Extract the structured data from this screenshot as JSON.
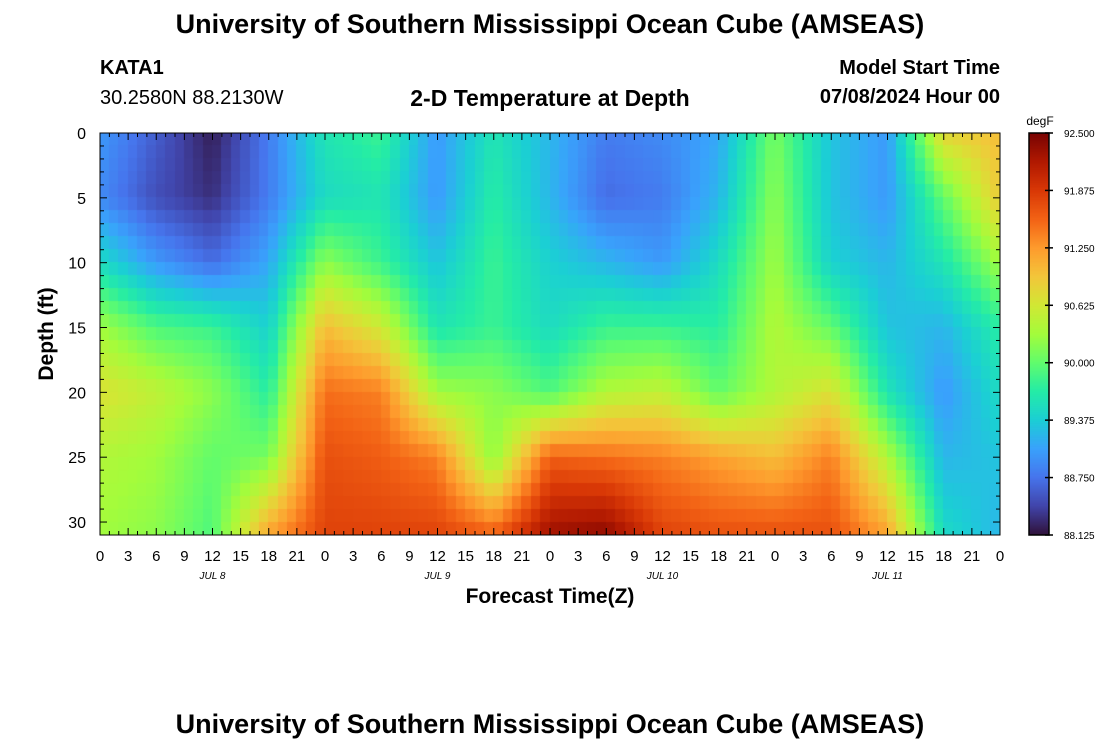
{
  "header": {
    "title": "University of Southern Mississippi Ocean Cube (AMSEAS)",
    "station": "KATA1",
    "coords": "30.2580N  88.2130W",
    "subtitle": "2-D Temperature at Depth",
    "start_label": "Model Start Time",
    "start_value": "07/08/2024 Hour 00",
    "footer_title": "University of Southern Mississippi Ocean Cube (AMSEAS)"
  },
  "colors": {
    "scale": [
      "#30123b",
      "#4145ab",
      "#4675ed",
      "#39a2fc",
      "#1bcfd4",
      "#24eca6",
      "#61fc6c",
      "#a4fc3b",
      "#d1e834",
      "#f3c63a",
      "#fe9b2d",
      "#f36315",
      "#d93806",
      "#b11901",
      "#7a0402"
    ]
  },
  "chart_data": {
    "type": "heatmap",
    "title": "2-D Temperature at Depth",
    "xlabel": "Forecast Time(Z)",
    "ylabel": "Depth (ft)",
    "units": "degF",
    "xlim": [
      0,
      96
    ],
    "ylim": [
      0,
      31
    ],
    "x_tick_labels": [
      "0",
      "3",
      "6",
      "9",
      "12",
      "15",
      "18",
      "21",
      "0",
      "3",
      "6",
      "9",
      "12",
      "15",
      "18",
      "21",
      "0",
      "3",
      "6",
      "9",
      "12",
      "15",
      "18",
      "21",
      "0",
      "3",
      "6",
      "9",
      "12",
      "15",
      "18",
      "21",
      "0"
    ],
    "y_ticks": [
      0,
      5,
      10,
      15,
      20,
      25,
      30
    ],
    "day_labels": [
      {
        "label": "JUL 8",
        "hour": 12
      },
      {
        "label": "JUL 9",
        "hour": 36
      },
      {
        "label": "JUL 10",
        "hour": 60
      },
      {
        "label": "JUL 11",
        "hour": 84
      }
    ],
    "colorbar": {
      "min": 88.125,
      "max": 92.5,
      "tick_labels": [
        "92.500",
        "91.875",
        "91.250",
        "90.625",
        "90.000",
        "89.375",
        "88.750",
        "88.125"
      ]
    },
    "hours": [
      0,
      6,
      12,
      18,
      24,
      30,
      36,
      42,
      48,
      54,
      60,
      66,
      72,
      78,
      84,
      90,
      96
    ],
    "depths_ft": [
      0,
      5,
      10,
      15,
      20,
      25,
      31
    ],
    "temperature_degF": [
      [
        89.0,
        88.6,
        88.2,
        88.8,
        89.6,
        89.8,
        89.0,
        89.6,
        89.2,
        88.8,
        88.9,
        89.1,
        90.1,
        89.3,
        89.0,
        90.8,
        91.0
      ],
      [
        88.9,
        88.5,
        88.3,
        88.8,
        89.5,
        89.6,
        89.0,
        89.7,
        89.2,
        88.7,
        88.8,
        89.2,
        90.2,
        89.3,
        89.0,
        90.0,
        90.9
      ],
      [
        89.5,
        89.0,
        88.7,
        89.1,
        90.2,
        89.8,
        89.3,
        89.8,
        89.4,
        89.2,
        89.0,
        89.5,
        90.3,
        89.4,
        89.2,
        89.6,
        90.3
      ],
      [
        90.3,
        89.9,
        89.8,
        89.4,
        91.0,
        90.6,
        89.6,
        89.8,
        89.5,
        89.8,
        89.8,
        89.7,
        90.4,
        90.0,
        89.3,
        89.2,
        89.7
      ],
      [
        90.7,
        90.5,
        90.2,
        89.7,
        91.5,
        91.4,
        90.3,
        90.2,
        89.9,
        90.4,
        90.5,
        90.0,
        90.4,
        90.7,
        89.6,
        89.0,
        89.5
      ],
      [
        90.4,
        90.3,
        90.0,
        90.1,
        91.7,
        91.6,
        91.4,
        90.2,
        91.6,
        91.5,
        91.4,
        91.2,
        91.0,
        91.4,
        90.4,
        89.2,
        89.3
      ],
      [
        90.3,
        90.2,
        89.9,
        91.2,
        91.8,
        91.8,
        91.8,
        91.6,
        92.3,
        92.4,
        91.8,
        91.7,
        91.7,
        91.7,
        91.2,
        89.5,
        89.2
      ]
    ]
  }
}
